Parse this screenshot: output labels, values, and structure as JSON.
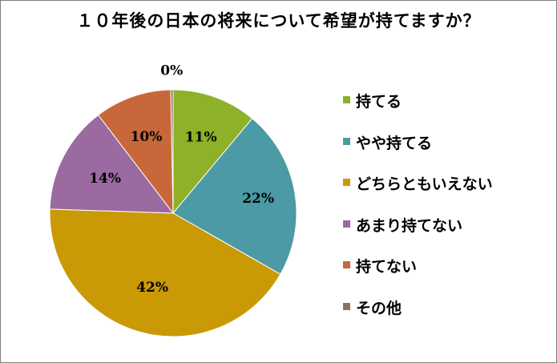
{
  "chart_data": {
    "type": "pie",
    "title": "１０年後の日本の将来について希望が持てますか？",
    "slices": [
      {
        "name": "持てる",
        "value": 11,
        "label": "11%",
        "color": "#8db128"
      },
      {
        "name": "やや持てる",
        "value": 22,
        "label": "22%",
        "color": "#4b9aa5"
      },
      {
        "name": "どちらともいえない",
        "value": 42,
        "label": "42%",
        "color": "#c99a06"
      },
      {
        "name": "あまり持てない",
        "value": 14,
        "label": "14%",
        "color": "#9a6aa0"
      },
      {
        "name": "持てない",
        "value": 10,
        "label": "10%",
        "color": "#c8683a"
      },
      {
        "name": "その他",
        "value": 0.3,
        "label": "0%",
        "color": "#8a735a"
      }
    ],
    "legend_position": "right"
  }
}
